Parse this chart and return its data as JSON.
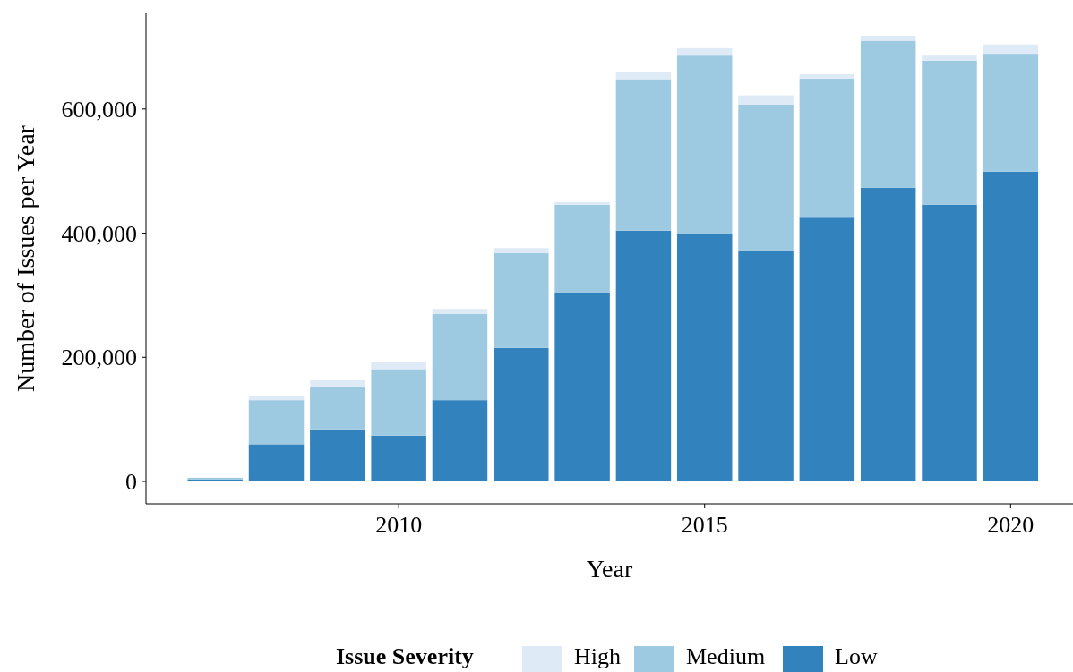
{
  "chart_data": {
    "type": "bar",
    "stacked": true,
    "xlabel": "Year",
    "ylabel": "Number of Issues per Year",
    "legend_title": "Issue Severity",
    "legend": "bottom",
    "grid": false,
    "x": [
      2007,
      2008,
      2009,
      2010,
      2011,
      2012,
      2013,
      2014,
      2015,
      2016,
      2017,
      2018,
      2019,
      2020
    ],
    "xlim": [
      2005.87,
      2021.02
    ],
    "xticks": [
      2010,
      2015,
      2020
    ],
    "ylim": [
      -36000,
      754000
    ],
    "yticks": [
      {
        "value": 0,
        "label": "0"
      },
      {
        "value": 200000,
        "label": "200,000"
      },
      {
        "value": 400000,
        "label": "400,000"
      },
      {
        "value": 600000,
        "label": "600,000"
      }
    ],
    "series": [
      {
        "name": "Low",
        "color": "#3182bd",
        "values": [
          3000,
          60000,
          84000,
          74000,
          131000,
          215000,
          304000,
          404000,
          398000,
          372000,
          425000,
          473000,
          446000,
          499000
        ]
      },
      {
        "name": "Medium",
        "color": "#9ecae1",
        "values": [
          3000,
          71000,
          69000,
          107000,
          139000,
          153000,
          142000,
          244000,
          288000,
          235000,
          224000,
          237000,
          232000,
          190000
        ]
      },
      {
        "name": "High",
        "color": "#deebf7",
        "values": [
          null,
          7000,
          10000,
          12000,
          8000,
          8000,
          4000,
          12000,
          12000,
          15000,
          7000,
          8000,
          8000,
          15000
        ]
      }
    ]
  }
}
